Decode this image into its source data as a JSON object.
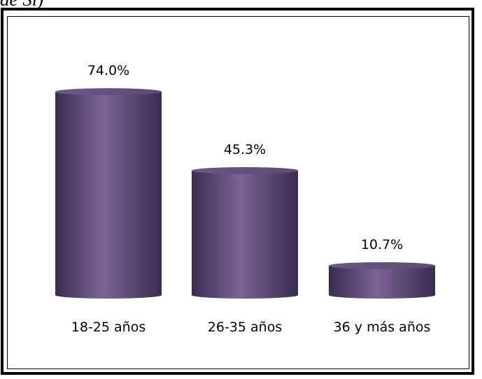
{
  "caption_fragment": "de Sí)",
  "chart_data": {
    "type": "bar",
    "style": "3d-cylinder",
    "categories": [
      "18-25 años",
      "26-35 años",
      "36 y más años"
    ],
    "values": [
      74.0,
      45.3,
      10.7
    ],
    "data_labels": [
      "74.0%",
      "45.3%",
      "10.7%"
    ],
    "value_unit": "%",
    "title": "",
    "xlabel": "",
    "ylabel": "",
    "ylim": [
      0,
      100
    ],
    "grid": false,
    "legend": "none",
    "colors": {
      "bar_light": "#7a6496",
      "bar_mid": "#5c4a77",
      "bar_dark": "#3a2c50",
      "bar_top": "#6b5788"
    }
  }
}
